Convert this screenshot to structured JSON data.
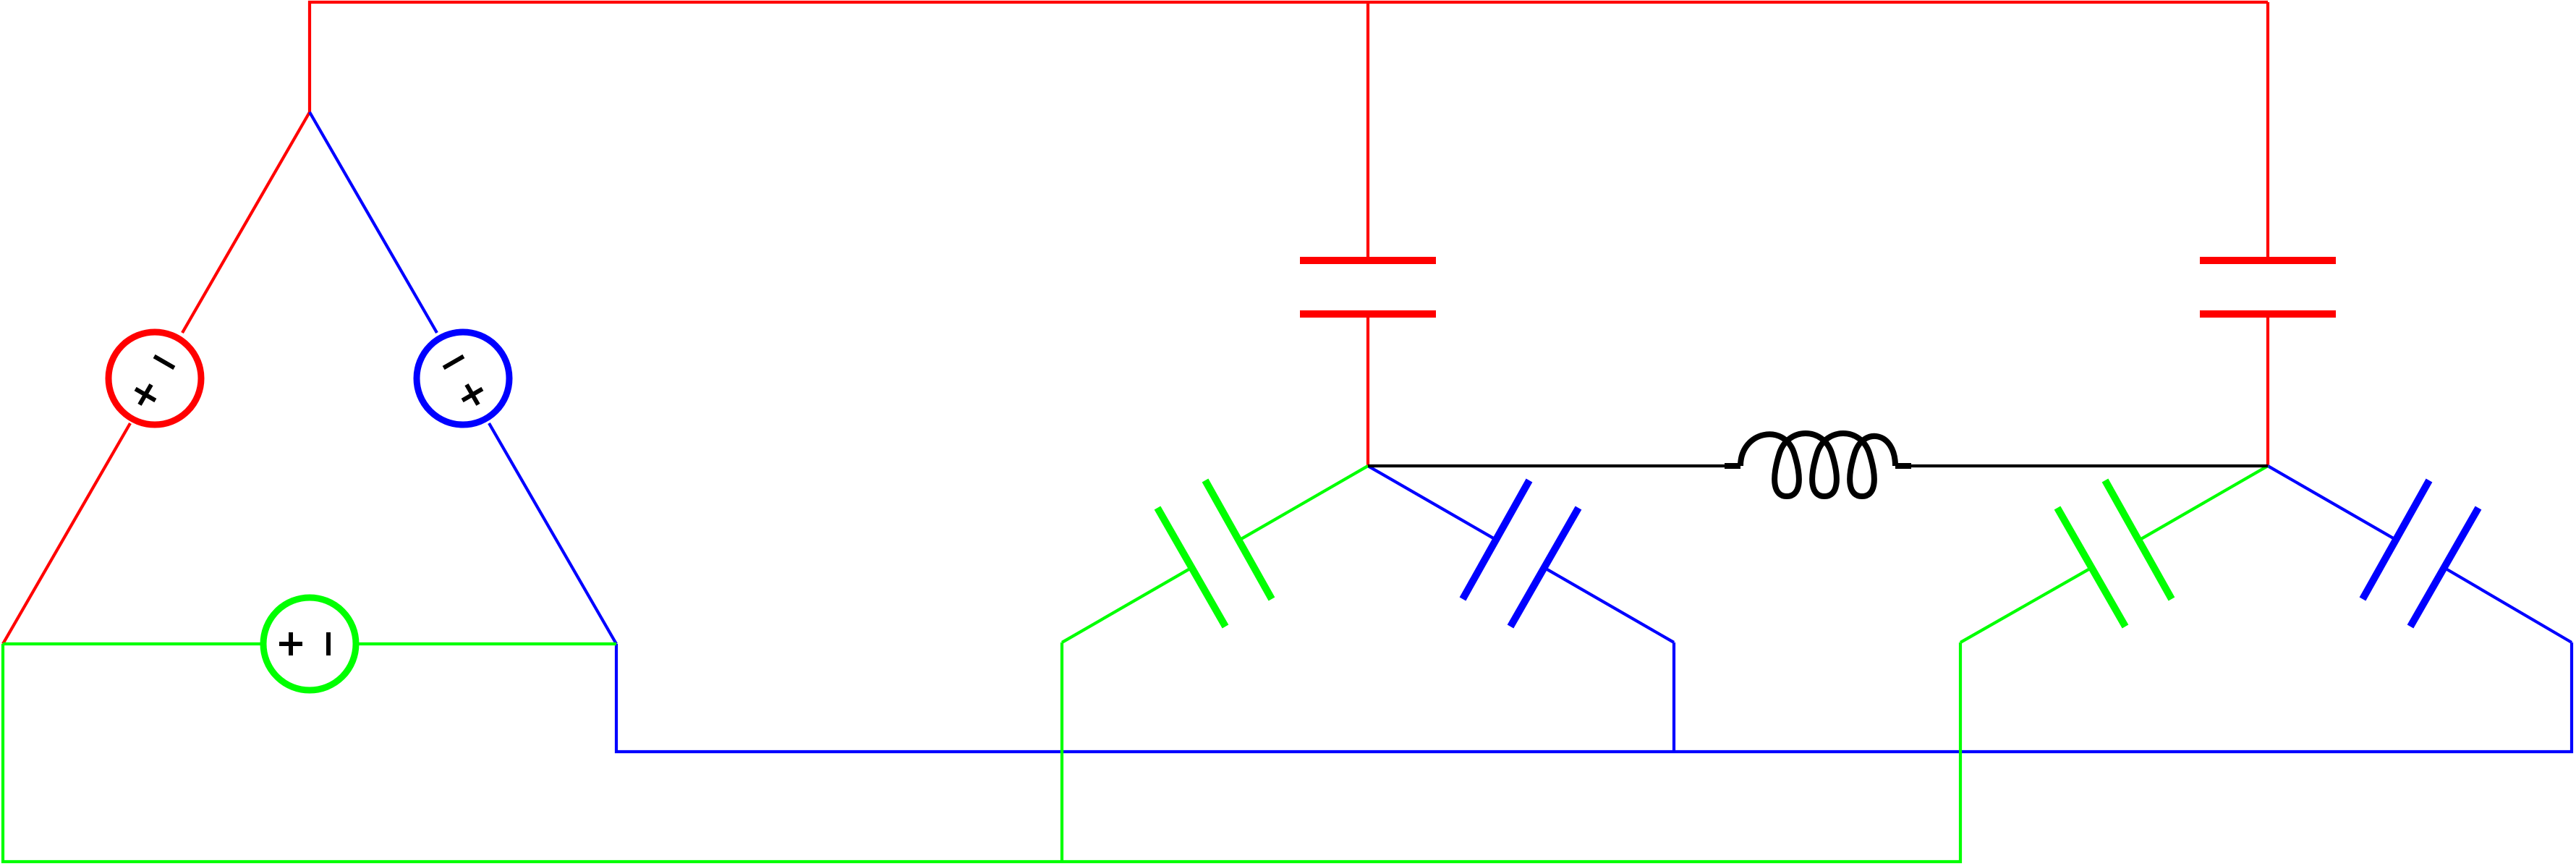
{
  "colors": {
    "phase_a": "#ff0000",
    "phase_b": "#0000ff",
    "phase_c": "#00ff00",
    "inductor": "#000000",
    "background": "#ffffff"
  },
  "diagram": {
    "components": [
      {
        "id": "source-a",
        "kind": "ac-voltage-source",
        "phase": "phase_a",
        "polarity": [
          "+",
          "-"
        ]
      },
      {
        "id": "source-b",
        "kind": "ac-voltage-source",
        "phase": "phase_b",
        "polarity": [
          "+",
          "-"
        ]
      },
      {
        "id": "source-c",
        "kind": "ac-voltage-source",
        "phase": "phase_c",
        "polarity": [
          "+",
          "-"
        ]
      },
      {
        "id": "capacitor-a-1",
        "kind": "capacitor",
        "phase": "phase_a"
      },
      {
        "id": "capacitor-a-2",
        "kind": "capacitor",
        "phase": "phase_a"
      },
      {
        "id": "capacitor-b-1",
        "kind": "capacitor",
        "phase": "phase_b"
      },
      {
        "id": "capacitor-b-2",
        "kind": "capacitor",
        "phase": "phase_b"
      },
      {
        "id": "capacitor-c-1",
        "kind": "capacitor",
        "phase": "phase_c"
      },
      {
        "id": "capacitor-c-2",
        "kind": "capacitor",
        "phase": "phase_c"
      },
      {
        "id": "inductor-1",
        "kind": "inductor",
        "turns": 4
      }
    ]
  }
}
